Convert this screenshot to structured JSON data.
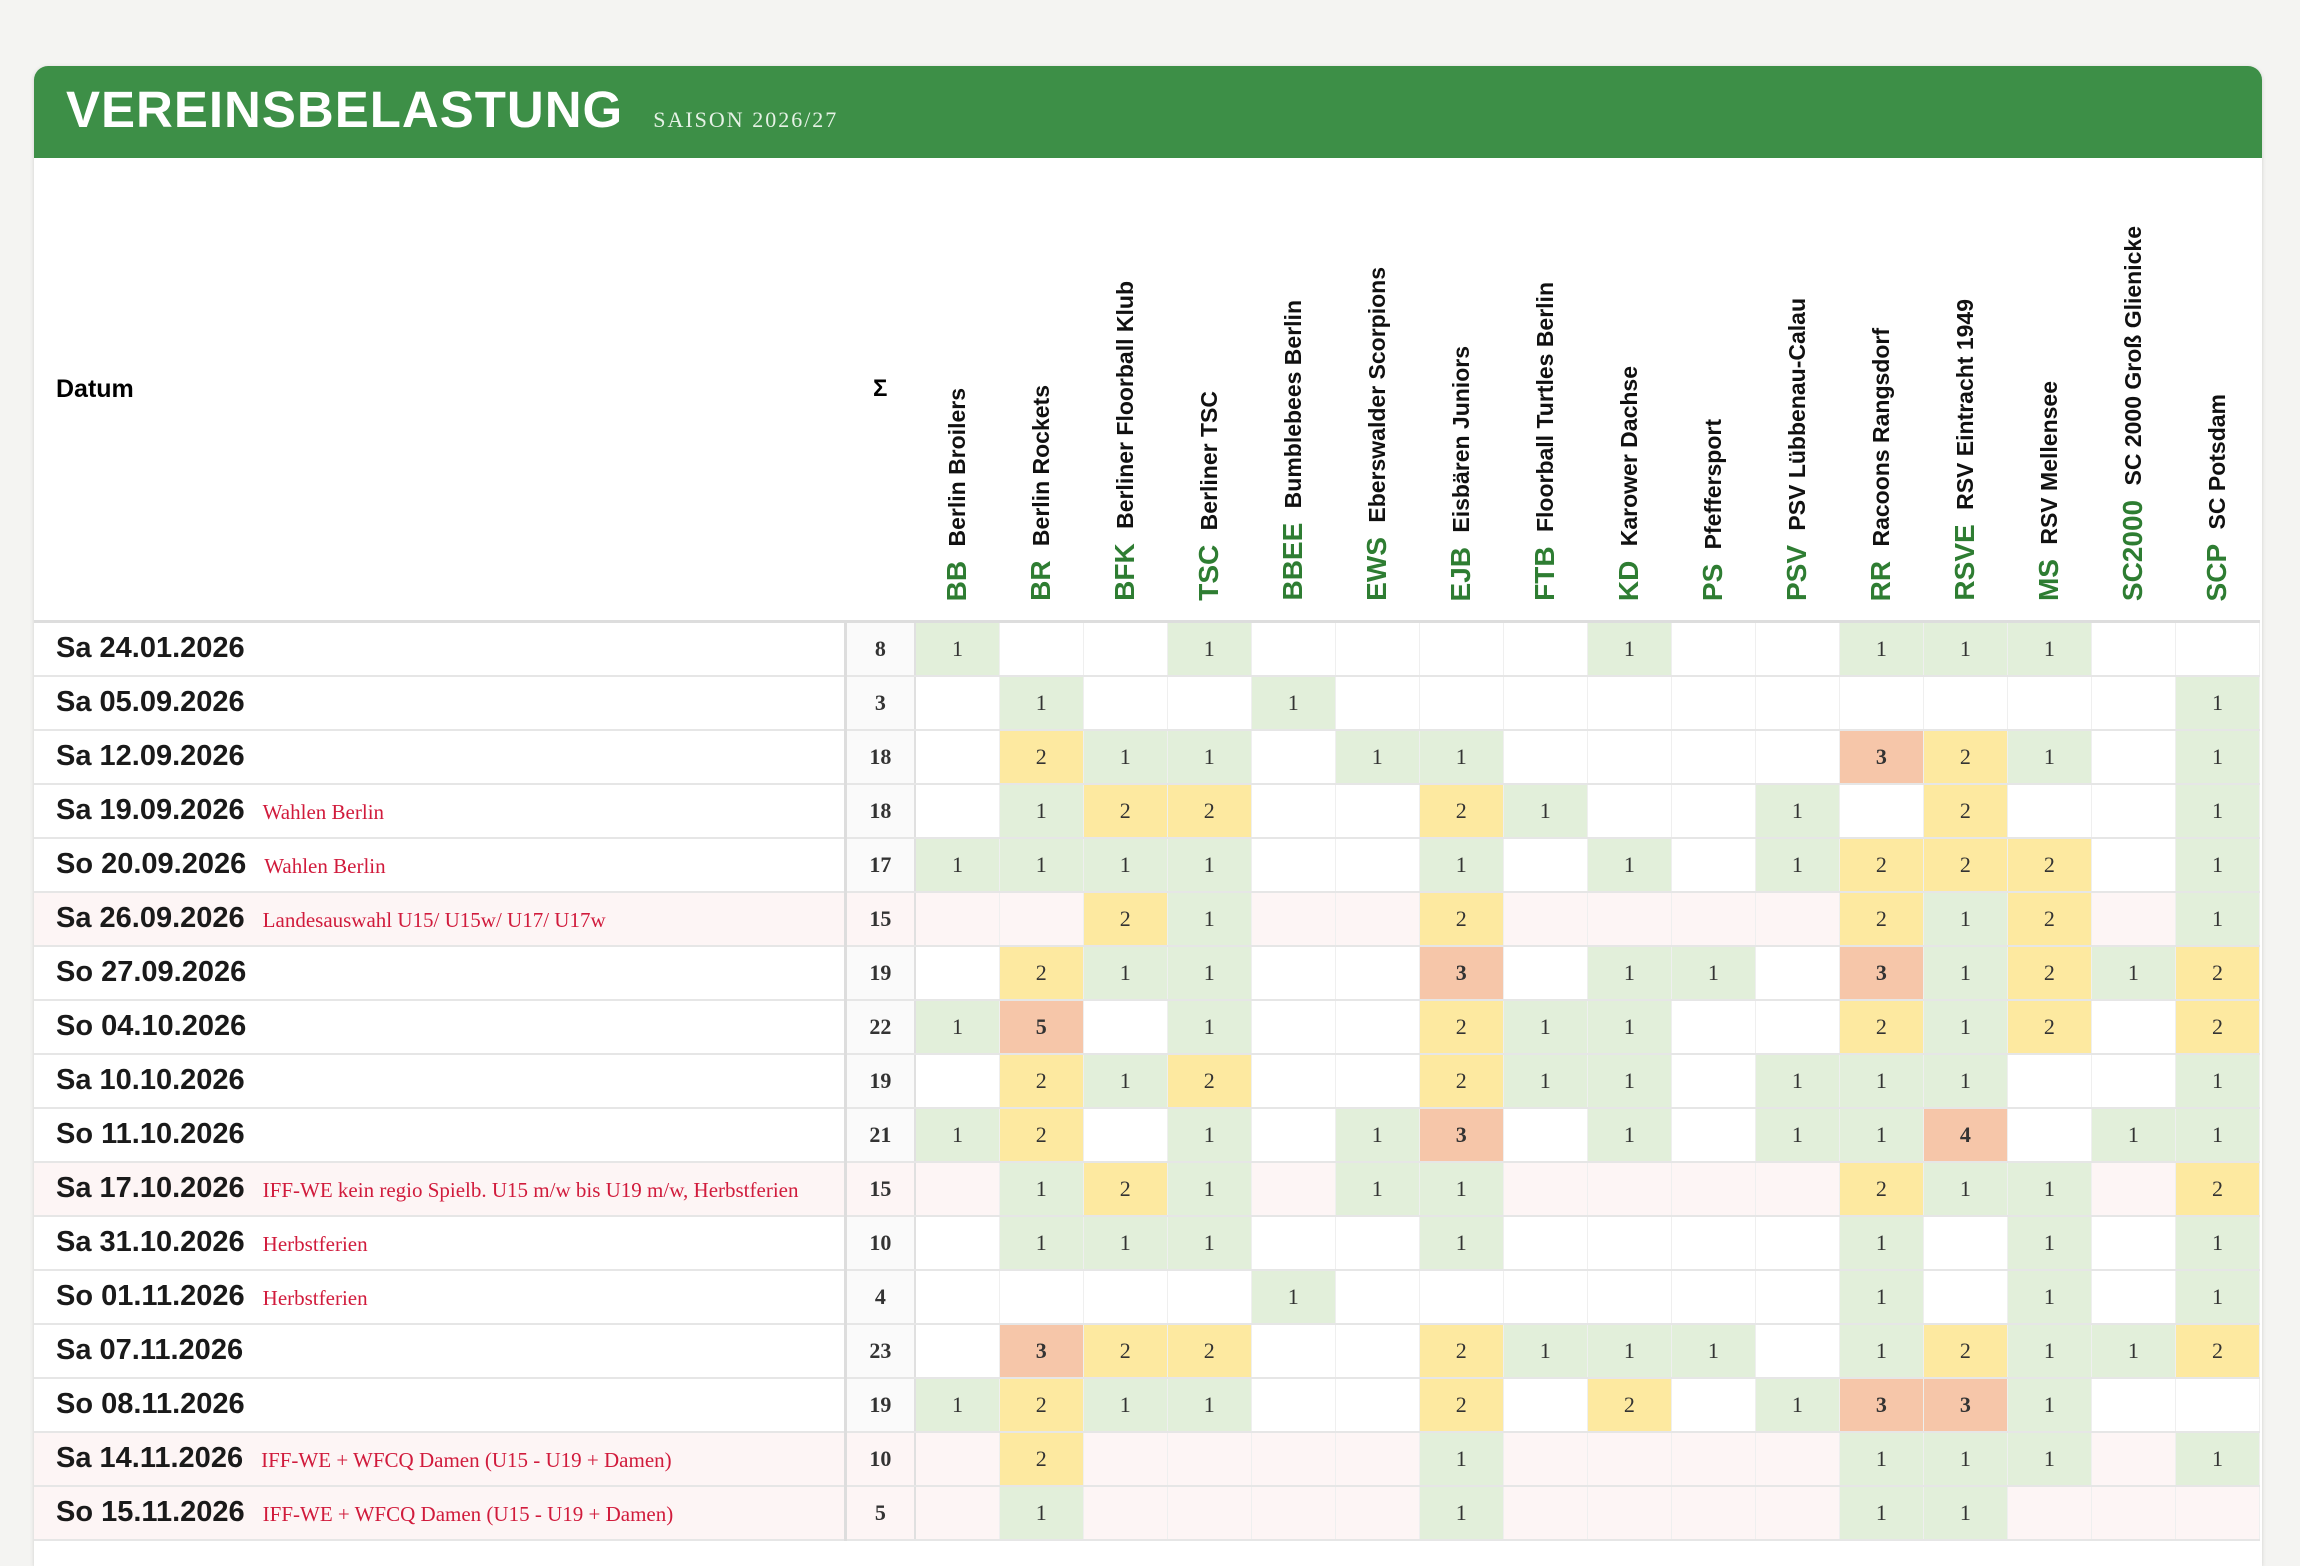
{
  "header": {
    "title": "VEREINSBELASTUNG",
    "subtitle": "SAISON 2026/27"
  },
  "table": {
    "date_header": "Datum",
    "sum_header": "Σ",
    "columns": [
      {
        "abbr": "BB",
        "name": "Berlin Broilers"
      },
      {
        "abbr": "BR",
        "name": "Berlin Rockets"
      },
      {
        "abbr": "BFK",
        "name": "Berliner Floorball Klub"
      },
      {
        "abbr": "TSC",
        "name": "Berliner TSC"
      },
      {
        "abbr": "BBEE",
        "name": "Bumblebees Berlin"
      },
      {
        "abbr": "EWS",
        "name": "Eberswalder Scorpions"
      },
      {
        "abbr": "EJB",
        "name": "Eisbären Juniors"
      },
      {
        "abbr": "FTB",
        "name": "Floorball Turtles Berlin"
      },
      {
        "abbr": "KD",
        "name": "Karower Dachse"
      },
      {
        "abbr": "PS",
        "name": "Pfeffersport"
      },
      {
        "abbr": "PSV",
        "name": "PSV Lübbenau-Calau"
      },
      {
        "abbr": "RR",
        "name": "Racoons Rangsdorf"
      },
      {
        "abbr": "RSVE",
        "name": "RSV Eintracht 1949"
      },
      {
        "abbr": "MS",
        "name": "RSV Mellensee"
      },
      {
        "abbr": "SC2000",
        "name": "SC 2000 Groß Glienicke"
      },
      {
        "abbr": "SCP",
        "name": "SC Potsdam"
      }
    ],
    "rows": [
      {
        "date": "Sa 24.01.2026",
        "sum": 8,
        "cells": [
          1,
          null,
          null,
          1,
          null,
          null,
          null,
          null,
          1,
          null,
          null,
          1,
          1,
          1,
          null,
          null
        ]
      },
      {
        "date": "Sa 05.09.2026",
        "sum": 3,
        "cells": [
          null,
          1,
          null,
          null,
          1,
          null,
          null,
          null,
          null,
          null,
          null,
          null,
          null,
          null,
          null,
          1
        ]
      },
      {
        "date": "Sa 12.09.2026",
        "sum": 18,
        "cells": [
          null,
          2,
          1,
          1,
          null,
          1,
          1,
          null,
          null,
          null,
          null,
          3,
          2,
          1,
          null,
          1
        ]
      },
      {
        "date": "Sa 19.09.2026",
        "note": "Wahlen Berlin",
        "sum": 18,
        "cells": [
          null,
          1,
          2,
          2,
          null,
          null,
          2,
          1,
          null,
          null,
          1,
          null,
          2,
          null,
          null,
          1
        ]
      },
      {
        "date": "So 20.09.2026",
        "note": "Wahlen Berlin",
        "sum": 17,
        "cells": [
          1,
          1,
          1,
          1,
          null,
          null,
          1,
          null,
          1,
          null,
          1,
          2,
          2,
          2,
          null,
          1
        ]
      },
      {
        "date": "Sa 26.09.2026",
        "note": "Landesauswahl U15/ U15w/ U17/ U17w",
        "shaded": true,
        "sum": 15,
        "cells": [
          null,
          null,
          2,
          1,
          null,
          null,
          2,
          null,
          null,
          null,
          null,
          2,
          1,
          2,
          null,
          1
        ]
      },
      {
        "date": "So 27.09.2026",
        "sum": 19,
        "cells": [
          null,
          2,
          1,
          1,
          null,
          null,
          3,
          null,
          1,
          1,
          null,
          3,
          1,
          2,
          1,
          2
        ]
      },
      {
        "date": "So 04.10.2026",
        "sum": 22,
        "cells": [
          1,
          5,
          null,
          1,
          null,
          null,
          2,
          1,
          1,
          null,
          null,
          2,
          1,
          2,
          null,
          2
        ]
      },
      {
        "date": "Sa 10.10.2026",
        "sum": 19,
        "cells": [
          null,
          2,
          1,
          2,
          null,
          null,
          2,
          1,
          1,
          null,
          1,
          1,
          1,
          null,
          null,
          1
        ]
      },
      {
        "date": "So 11.10.2026",
        "sum": 21,
        "cells": [
          1,
          2,
          null,
          1,
          null,
          1,
          3,
          null,
          1,
          null,
          1,
          1,
          4,
          null,
          1,
          1
        ]
      },
      {
        "date": "Sa 17.10.2026",
        "note": "IFF-WE kein regio Spielb. U15 m/w bis U19 m/w, Herbstferien",
        "shaded": true,
        "sum": 15,
        "cells": [
          null,
          1,
          2,
          1,
          null,
          1,
          1,
          null,
          null,
          null,
          null,
          2,
          1,
          1,
          null,
          2
        ]
      },
      {
        "date": "Sa 31.10.2026",
        "note": "Herbstferien",
        "sum": 10,
        "cells": [
          null,
          1,
          1,
          1,
          null,
          null,
          1,
          null,
          null,
          null,
          null,
          1,
          null,
          1,
          null,
          1
        ]
      },
      {
        "date": "So 01.11.2026",
        "note": "Herbstferien",
        "sum": 4,
        "cells": [
          null,
          null,
          null,
          null,
          1,
          null,
          null,
          null,
          null,
          null,
          null,
          1,
          null,
          1,
          null,
          1
        ]
      },
      {
        "date": "Sa 07.11.2026",
        "sum": 23,
        "cells": [
          null,
          3,
          2,
          2,
          null,
          null,
          2,
          1,
          1,
          1,
          null,
          1,
          2,
          1,
          1,
          2
        ]
      },
      {
        "date": "So 08.11.2026",
        "sum": 19,
        "cells": [
          1,
          2,
          1,
          1,
          null,
          null,
          2,
          null,
          2,
          null,
          1,
          3,
          3,
          1,
          null,
          null
        ]
      },
      {
        "date": "Sa 14.11.2026",
        "note": "IFF-WE + WFCQ Damen (U15 - U19 + Damen)",
        "shaded": true,
        "sum": 10,
        "cells": [
          null,
          2,
          null,
          null,
          null,
          null,
          1,
          null,
          null,
          null,
          null,
          1,
          1,
          1,
          null,
          1
        ]
      },
      {
        "date": "So 15.11.2026",
        "note": "IFF-WE + WFCQ Damen (U15 - U19 + Damen)",
        "shaded": true,
        "sum": 5,
        "cells": [
          null,
          1,
          null,
          null,
          null,
          null,
          1,
          null,
          null,
          null,
          null,
          1,
          1,
          null,
          null,
          null
        ]
      }
    ]
  }
}
